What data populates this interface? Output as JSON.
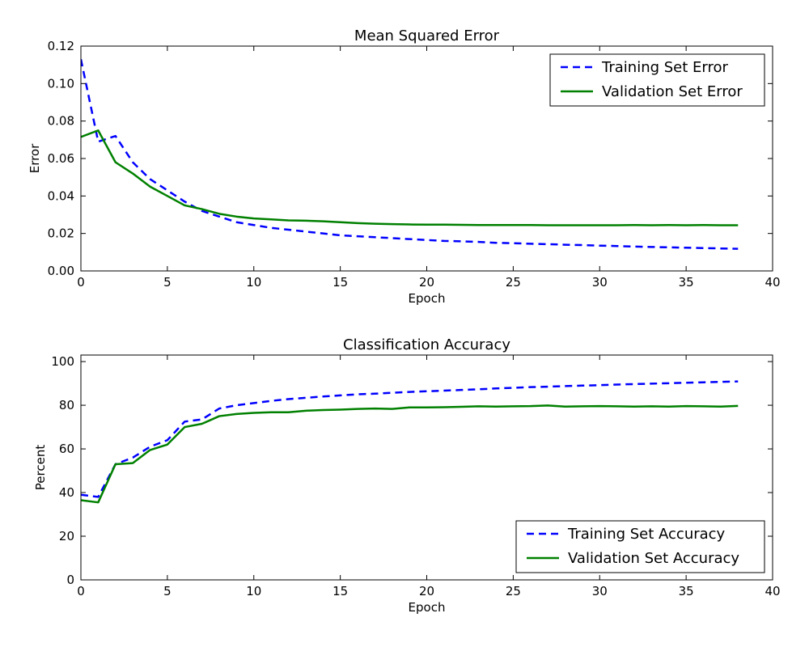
{
  "chart_data": [
    {
      "type": "line",
      "title": "Mean Squared Error",
      "xlabel": "Epoch",
      "ylabel": "Error",
      "xlim": [
        0,
        40
      ],
      "ylim": [
        0,
        0.12
      ],
      "xticks": [
        "0",
        "5",
        "10",
        "15",
        "20",
        "25",
        "30",
        "35",
        "40"
      ],
      "yticks": [
        "0.00",
        "0.02",
        "0.04",
        "0.06",
        "0.08",
        "0.10",
        "0.12"
      ],
      "xtick_values": [
        0,
        5,
        10,
        15,
        20,
        25,
        30,
        35,
        40
      ],
      "ytick_values": [
        0,
        0.02,
        0.04,
        0.06,
        0.08,
        0.1,
        0.12
      ],
      "grid": false,
      "legend_position": "top-right",
      "x": [
        0,
        1,
        2,
        3,
        4,
        5,
        6,
        7,
        8,
        9,
        10,
        11,
        12,
        13,
        14,
        15,
        16,
        17,
        18,
        19,
        20,
        21,
        22,
        23,
        24,
        25,
        26,
        27,
        28,
        29,
        30,
        31,
        32,
        33,
        34,
        35,
        36,
        37,
        38
      ],
      "series": [
        {
          "name": "Training Set Error",
          "color": "#0000ff",
          "style": "dashed",
          "values": [
            0.113,
            0.069,
            0.072,
            0.058,
            0.049,
            0.043,
            0.037,
            0.032,
            0.029,
            0.026,
            0.0245,
            0.023,
            0.022,
            0.021,
            0.02,
            0.019,
            0.0185,
            0.018,
            0.0175,
            0.017,
            0.0165,
            0.016,
            0.0158,
            0.0155,
            0.015,
            0.0148,
            0.0145,
            0.0143,
            0.014,
            0.0138,
            0.0135,
            0.0133,
            0.013,
            0.0128,
            0.0126,
            0.0124,
            0.0122,
            0.012,
            0.0118
          ]
        },
        {
          "name": "Validation Set Error",
          "color": "#008000",
          "style": "solid",
          "values": [
            0.0715,
            0.075,
            0.058,
            0.052,
            0.045,
            0.04,
            0.035,
            0.033,
            0.0305,
            0.029,
            0.028,
            0.0275,
            0.027,
            0.0268,
            0.0265,
            0.026,
            0.0255,
            0.0252,
            0.025,
            0.0248,
            0.0247,
            0.0247,
            0.0246,
            0.0245,
            0.0245,
            0.0245,
            0.0245,
            0.0244,
            0.0244,
            0.0244,
            0.0244,
            0.0244,
            0.0245,
            0.0244,
            0.0245,
            0.0244,
            0.0245,
            0.0244,
            0.0244
          ]
        }
      ]
    },
    {
      "type": "line",
      "title": "Classification Accuracy",
      "xlabel": "Epoch",
      "ylabel": "Percent",
      "xlim": [
        0,
        40
      ],
      "ylim": [
        0,
        103
      ],
      "xticks": [
        "0",
        "5",
        "10",
        "15",
        "20",
        "25",
        "30",
        "35",
        "40"
      ],
      "yticks": [
        "0",
        "20",
        "40",
        "60",
        "80",
        "100"
      ],
      "xtick_values": [
        0,
        5,
        10,
        15,
        20,
        25,
        30,
        35,
        40
      ],
      "ytick_values": [
        0,
        20,
        40,
        60,
        80,
        100
      ],
      "grid": false,
      "legend_position": "bottom-right",
      "x": [
        0,
        1,
        2,
        3,
        4,
        5,
        6,
        7,
        8,
        9,
        10,
        11,
        12,
        13,
        14,
        15,
        16,
        17,
        18,
        19,
        20,
        21,
        22,
        23,
        24,
        25,
        26,
        27,
        28,
        29,
        30,
        31,
        32,
        33,
        34,
        35,
        36,
        37,
        38
      ],
      "series": [
        {
          "name": "Training Set Accuracy",
          "color": "#0000ff",
          "style": "dashed",
          "values": [
            39,
            38,
            53,
            56,
            61,
            64,
            72.5,
            73.5,
            78.5,
            80,
            81,
            82,
            82.8,
            83.4,
            84,
            84.5,
            85,
            85.3,
            85.7,
            86.1,
            86.4,
            86.7,
            87,
            87.3,
            87.7,
            88,
            88.3,
            88.5,
            88.8,
            89,
            89.2,
            89.5,
            89.7,
            89.9,
            90.1,
            90.3,
            90.5,
            90.7,
            90.9
          ]
        },
        {
          "name": "Validation Set Accuracy",
          "color": "#008000",
          "style": "solid",
          "values": [
            36.5,
            35.5,
            53,
            53.5,
            59.5,
            62,
            70,
            71.5,
            75,
            76,
            76.5,
            76.8,
            76.8,
            77.5,
            77.8,
            78,
            78.3,
            78.5,
            78.3,
            79,
            79,
            79.1,
            79.3,
            79.5,
            79.4,
            79.5,
            79.6,
            79.9,
            79.4,
            79.5,
            79.6,
            79.5,
            79.4,
            79.5,
            79.4,
            79.6,
            79.5,
            79.4,
            79.7
          ]
        }
      ]
    }
  ]
}
